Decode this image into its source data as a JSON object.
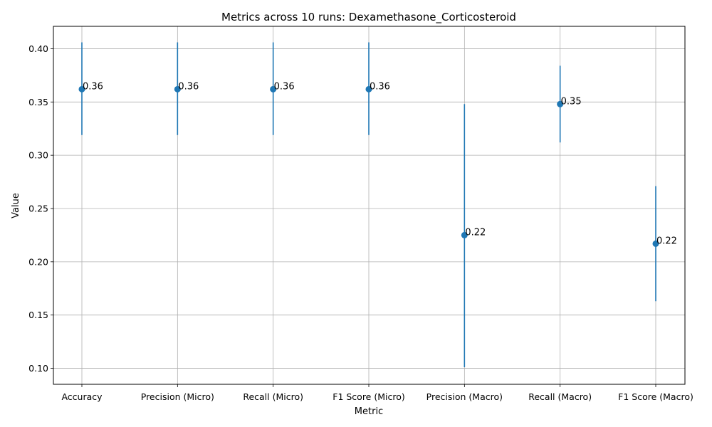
{
  "chart_data": {
    "type": "scatter",
    "title": "Metrics across 10 runs: Dexamethasone_Corticosteroid",
    "xlabel": "Metric",
    "ylabel": "Value",
    "categories": [
      "Accuracy",
      "Precision (Micro)",
      "Recall (Micro)",
      "F1 Score (Micro)",
      "Precision (Macro)",
      "Recall (Macro)",
      "F1 Score (Macro)"
    ],
    "values": [
      0.362,
      0.362,
      0.362,
      0.362,
      0.225,
      0.348,
      0.217
    ],
    "error_low": [
      0.319,
      0.319,
      0.319,
      0.319,
      0.101,
      0.312,
      0.163
    ],
    "error_high": [
      0.406,
      0.406,
      0.406,
      0.406,
      0.348,
      0.384,
      0.271
    ],
    "data_labels": [
      "0.36",
      "0.36",
      "0.36",
      "0.36",
      "0.22",
      "0.35",
      "0.22"
    ],
    "ylim": [
      0.085,
      0.421
    ],
    "yticks": [
      0.1,
      0.15,
      0.2,
      0.25,
      0.3,
      0.35,
      0.4
    ],
    "ytick_labels": [
      "0.10",
      "0.15",
      "0.20",
      "0.25",
      "0.30",
      "0.35",
      "0.40"
    ],
    "grid": true,
    "colors": {
      "marker": "#1f77b4",
      "grid": "#b0b0b0"
    }
  }
}
